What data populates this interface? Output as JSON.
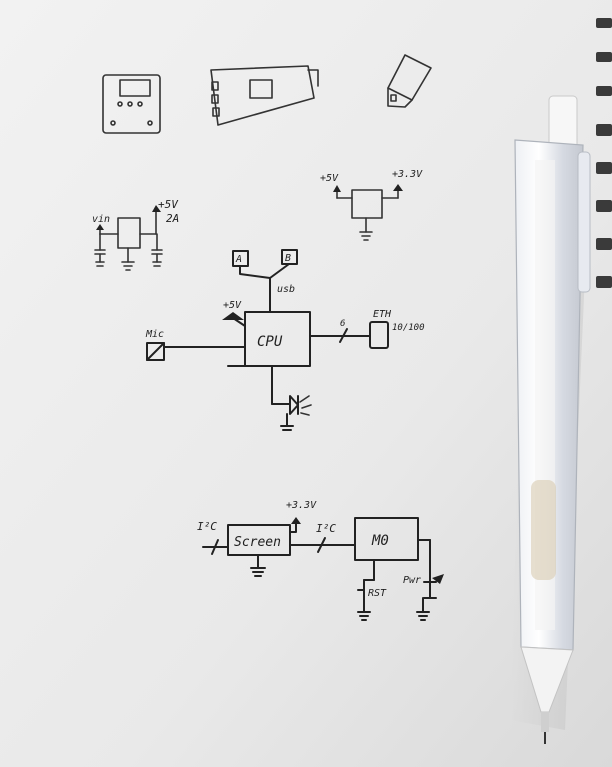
{
  "labels": {
    "plus5v_small_left": "+5V",
    "plus5v_left_reg": "+5V",
    "current_2a": "2A",
    "vin": "vin",
    "plus5v_right_reg": "+5V",
    "plus3v3_right_reg": "+3.3V",
    "conn_a": "A",
    "conn_b": "B",
    "usb": "usb",
    "plus5v_cpu": "+5V",
    "cpu": "CPU",
    "mic": "Mic",
    "eth": "ETH",
    "eth_speed": "10/100",
    "bus_width": "6",
    "i2c_left": "I²C",
    "screen": "Screen",
    "plus3v3_screen": "+3.3V",
    "i2c_right": "I²C",
    "mcu": "M0",
    "rst": "RST",
    "pwr": "Pwr"
  },
  "colors": {
    "paper": "#ececec",
    "ink": "#222222",
    "pencil_body": "#dfe3ea",
    "pencil_tip": "#f3f3f3"
  }
}
